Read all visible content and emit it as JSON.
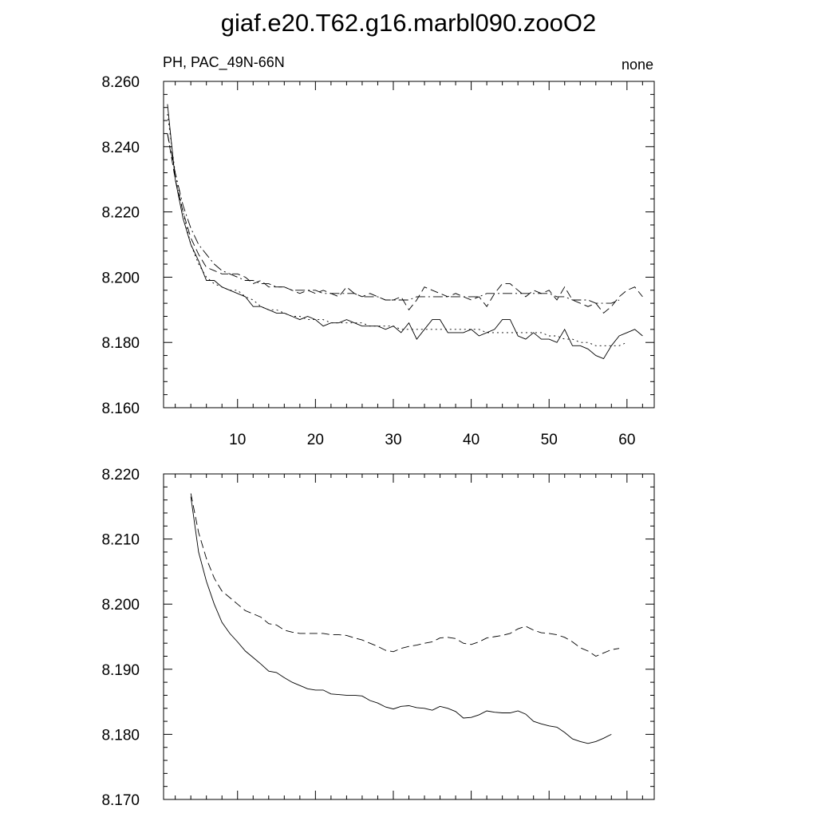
{
  "title": "giaf.e20.T62.g16.marbl090.zooO2",
  "colors": {
    "line": "#000000",
    "background": "#ffffff"
  },
  "chart_data": [
    {
      "type": "line",
      "subtitle_left": "PH, PAC_49N-66N",
      "subtitle_right": "none",
      "xlim": [
        0.5,
        63.5
      ],
      "ylim": [
        8.16,
        8.26
      ],
      "xticks": [
        10,
        20,
        30,
        40,
        50,
        60
      ],
      "yticks": [
        8.16,
        8.18,
        8.2,
        8.22,
        8.24,
        8.26
      ],
      "ytick_labels": [
        "8.160",
        "8.180",
        "8.200",
        "8.220",
        "8.240",
        "8.260"
      ],
      "grid": false,
      "x": [
        1,
        2,
        3,
        4,
        5,
        6,
        7,
        8,
        9,
        10,
        11,
        12,
        13,
        14,
        15,
        16,
        17,
        18,
        19,
        20,
        21,
        22,
        23,
        24,
        25,
        26,
        27,
        28,
        29,
        30,
        31,
        32,
        33,
        34,
        35,
        36,
        37,
        38,
        39,
        40,
        41,
        42,
        43,
        44,
        45,
        46,
        47,
        48,
        49,
        50,
        51,
        52,
        53,
        54,
        55,
        56,
        57,
        58,
        59,
        60,
        61,
        62,
        63
      ],
      "series": [
        {
          "style": "solid",
          "values": [
            8.253,
            8.23,
            8.218,
            8.21,
            8.205,
            8.199,
            8.199,
            8.197,
            8.196,
            8.195,
            8.194,
            8.191,
            8.191,
            8.19,
            8.189,
            8.189,
            8.188,
            8.187,
            8.188,
            8.187,
            8.185,
            8.186,
            8.186,
            8.187,
            8.186,
            8.185,
            8.185,
            8.185,
            8.184,
            8.185,
            8.183,
            8.186,
            8.181,
            8.184,
            8.187,
            8.187,
            8.183,
            8.183,
            8.183,
            8.184,
            8.182,
            8.183,
            8.184,
            8.187,
            8.187,
            8.182,
            8.181,
            8.183,
            8.181,
            8.181,
            8.18,
            8.184,
            8.179,
            8.179,
            8.178,
            8.176,
            8.175,
            8.179,
            8.182,
            8.183,
            8.184,
            8.182,
            null
          ]
        },
        {
          "style": "dashed",
          "values": [
            8.244,
            8.23,
            8.22,
            8.212,
            8.207,
            8.203,
            8.202,
            8.201,
            8.201,
            8.201,
            8.2,
            8.198,
            8.199,
            8.197,
            8.197,
            8.197,
            8.196,
            8.195,
            8.196,
            8.195,
            8.196,
            8.195,
            8.194,
            8.197,
            8.195,
            8.194,
            8.195,
            8.194,
            8.193,
            8.193,
            8.194,
            8.19,
            8.193,
            8.197,
            8.196,
            8.195,
            8.194,
            8.195,
            8.194,
            8.193,
            8.194,
            8.191,
            8.195,
            8.198,
            8.198,
            8.196,
            8.194,
            8.196,
            8.195,
            8.196,
            8.193,
            8.197,
            8.193,
            8.192,
            8.191,
            8.192,
            8.189,
            8.191,
            8.194,
            8.196,
            8.197,
            8.194,
            null
          ]
        },
        {
          "style": "dashdot",
          "values": [
            8.244,
            8.232,
            8.222,
            8.215,
            8.21,
            8.207,
            8.204,
            8.202,
            8.201,
            8.2,
            8.199,
            8.199,
            8.198,
            8.198,
            8.197,
            8.197,
            8.196,
            8.196,
            8.196,
            8.196,
            8.195,
            8.195,
            8.195,
            8.195,
            8.195,
            8.194,
            8.194,
            8.194,
            8.193,
            8.193,
            8.193,
            8.193,
            8.194,
            8.194,
            8.194,
            8.194,
            8.194,
            8.194,
            8.194,
            8.194,
            8.194,
            8.195,
            8.195,
            8.195,
            8.195,
            8.195,
            8.195,
            8.195,
            8.195,
            8.195,
            8.194,
            8.194,
            8.193,
            8.193,
            8.193,
            8.192,
            8.192,
            8.192,
            8.193,
            null,
            null,
            null,
            null
          ]
        },
        {
          "style": "dotted",
          "values": [
            8.25,
            8.232,
            8.22,
            8.21,
            8.204,
            8.2,
            8.198,
            8.197,
            8.196,
            8.196,
            8.194,
            8.193,
            8.191,
            8.19,
            8.19,
            8.189,
            8.188,
            8.188,
            8.187,
            8.187,
            8.187,
            8.186,
            8.186,
            8.186,
            8.186,
            8.186,
            8.185,
            8.185,
            8.185,
            8.185,
            8.184,
            8.184,
            8.184,
            8.184,
            8.184,
            8.184,
            8.184,
            8.184,
            8.184,
            8.184,
            8.184,
            8.183,
            8.183,
            8.183,
            8.183,
            8.183,
            8.183,
            8.183,
            8.183,
            8.182,
            8.182,
            8.181,
            8.181,
            8.18,
            8.18,
            8.179,
            8.179,
            8.179,
            8.179,
            8.18,
            null,
            null,
            null
          ]
        }
      ]
    },
    {
      "type": "line",
      "xlim": [
        0.5,
        63.5
      ],
      "ylim": [
        8.17,
        8.22
      ],
      "xticks": [
        10,
        20,
        30,
        40,
        50,
        60
      ],
      "yticks": [
        8.17,
        8.18,
        8.19,
        8.2,
        8.21,
        8.22
      ],
      "ytick_labels": [
        "8.170",
        "8.180",
        "8.190",
        "8.200",
        "8.210",
        "8.220"
      ],
      "grid": false,
      "x": [
        4,
        5,
        6,
        7,
        8,
        9,
        10,
        11,
        12,
        13,
        14,
        15,
        16,
        17,
        18,
        19,
        20,
        21,
        22,
        23,
        24,
        25,
        26,
        27,
        28,
        29,
        30,
        31,
        32,
        33,
        34,
        35,
        36,
        37,
        38,
        39,
        40,
        41,
        42,
        43,
        44,
        45,
        46,
        47,
        48,
        49,
        50,
        51,
        52,
        53,
        54,
        55,
        56,
        57,
        58,
        59
      ],
      "series": [
        {
          "style": "solid",
          "values": [
            8.2165,
            8.208,
            8.2035,
            8.2,
            8.1972,
            8.1955,
            8.1942,
            8.1928,
            8.1918,
            8.1908,
            8.1897,
            8.1895,
            8.1887,
            8.188,
            8.1875,
            8.187,
            8.1868,
            8.1868,
            8.1862,
            8.1861,
            8.186,
            8.186,
            8.1859,
            8.1852,
            8.1848,
            8.1842,
            8.1839,
            8.1843,
            8.1844,
            8.1841,
            8.184,
            8.1837,
            8.1843,
            8.184,
            8.1835,
            8.1825,
            8.1826,
            8.183,
            8.1836,
            8.1834,
            8.1833,
            8.1833,
            8.1836,
            8.1831,
            8.182,
            8.1816,
            8.1813,
            8.1811,
            8.1803,
            8.1793,
            8.1789,
            8.1786,
            8.1789,
            8.1794,
            8.18,
            null
          ]
        },
        {
          "style": "dashed",
          "values": [
            8.217,
            8.211,
            8.207,
            8.204,
            8.202,
            8.201,
            8.2,
            8.199,
            8.1985,
            8.198,
            8.197,
            8.1968,
            8.196,
            8.1957,
            8.1955,
            8.1955,
            8.1955,
            8.1955,
            8.1953,
            8.1953,
            8.1952,
            8.1948,
            8.1945,
            8.194,
            8.1935,
            8.1929,
            8.1927,
            8.1932,
            8.1935,
            8.1937,
            8.194,
            8.1942,
            8.1948,
            8.1949,
            8.1947,
            8.194,
            8.1938,
            8.1942,
            8.1948,
            8.195,
            8.1952,
            8.1955,
            8.1962,
            8.1966,
            8.196,
            8.1956,
            8.1955,
            8.1953,
            8.1949,
            8.1942,
            8.1933,
            8.1928,
            8.192,
            8.1925,
            8.193,
            8.1932
          ]
        }
      ]
    }
  ]
}
